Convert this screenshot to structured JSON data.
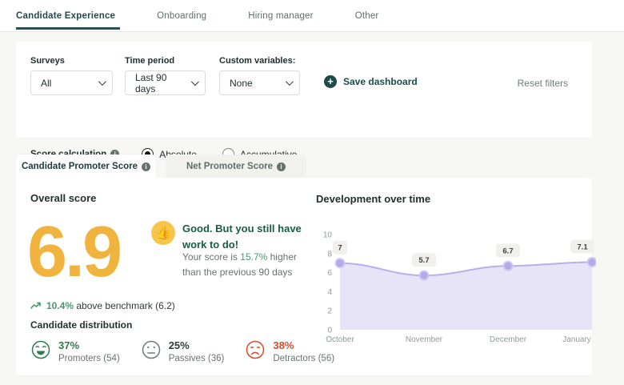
{
  "colors": {
    "accent_teal": "#1d4a4b",
    "score_yellow": "#f0b43e",
    "positive_green": "#2c7a4e",
    "highlight_green": "#4b9670",
    "negative_red": "#d7492b",
    "chart_line": "#b9aeea",
    "chart_fill": "#e8e4f8",
    "chart_marker": "#b5aae8"
  },
  "nav": {
    "tabs": [
      {
        "label": "Candidate Experience",
        "active": true
      },
      {
        "label": "Onboarding",
        "active": false
      },
      {
        "label": "Hiring manager",
        "active": false
      },
      {
        "label": "Other",
        "active": false
      }
    ]
  },
  "filters": {
    "surveys_label": "Surveys",
    "surveys_value": "All",
    "time_label": "Time period",
    "time_value": "Last 90 days",
    "custom_label": "Custom variables:",
    "custom_value": "None",
    "save_dashboard": "Save dashboard",
    "reset_filters": "Reset filters",
    "score_calc_label": "Score calculation",
    "radio_absolute": "Absolute",
    "radio_accumulative": "Accumulative",
    "score_calc_selected": "Absolute"
  },
  "score_tabs": {
    "active": "Candidate Promoter Score",
    "inactive": "Net Promoter Score"
  },
  "overall": {
    "title": "Overall score",
    "score": "6.9",
    "headline": "Good. But you still have work to do!",
    "body_prefix": "Your score is ",
    "body_highlight": "15.7%",
    "body_suffix": " higher than the previous 90 days",
    "benchmark_highlight": "10.4%",
    "benchmark_text": " above benchmark (6.2)"
  },
  "distribution": {
    "title": "Candidate distribution",
    "items": [
      {
        "pct": "37%",
        "label": "Promoters (54)",
        "type": "promoter"
      },
      {
        "pct": "25%",
        "label": "Passives (36)",
        "type": "passive"
      },
      {
        "pct": "38%",
        "label": "Detractors (56)",
        "type": "detractor"
      }
    ]
  },
  "chart_data": {
    "type": "area",
    "title": "Development over time",
    "x": [
      "October",
      "November",
      "December",
      "January"
    ],
    "values": [
      7,
      5.7,
      6.7,
      7.1
    ],
    "point_labels": [
      "7",
      "5.7",
      "6.7",
      "7.1"
    ],
    "ylim": [
      0,
      10
    ],
    "yticks": [
      0,
      2,
      4,
      6,
      8,
      10
    ],
    "grid": false,
    "legend": false,
    "xlabel": "",
    "ylabel": ""
  }
}
